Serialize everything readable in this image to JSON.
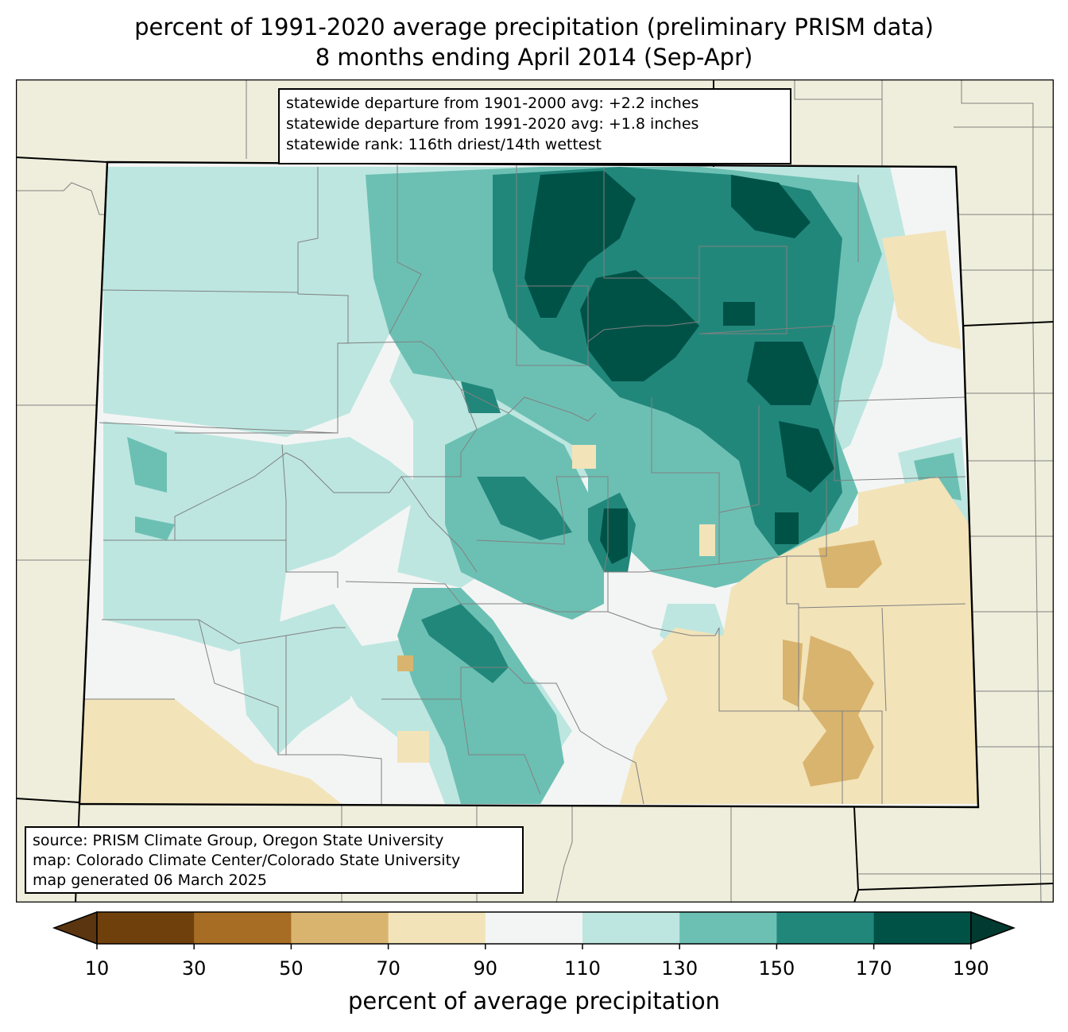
{
  "title": {
    "line1": "percent of 1991-2020 average precipitation (preliminary PRISM data)",
    "line2": "8 months ending April 2014 (Sep-Apr)"
  },
  "stats": {
    "line1": "statewide departure from 1901-2000 avg: +2.2 inches",
    "line2": "statewide departure from 1991-2020 avg: +1.8 inches",
    "line3": "statewide rank: 116th driest/14th wettest"
  },
  "source": {
    "line1": "source: PRISM Climate Group, Oregon State University",
    "line2": "map: Colorado Climate Center/Colorado State University",
    "line3": "map generated 06 March 2025"
  },
  "colorbar": {
    "title": "percent of average precipitation",
    "ticks": [
      "10",
      "30",
      "50",
      "70",
      "90",
      "110",
      "130",
      "150",
      "170",
      "190"
    ],
    "colors": [
      "#5a3510",
      "#70400c",
      "#a86d24",
      "#d9b46e",
      "#f2e3b9",
      "#f3f5f4",
      "#bde6e0",
      "#6cc0b3",
      "#22877b",
      "#005247",
      "#003a30"
    ]
  },
  "colors": {
    "background_land": "#efeedc",
    "state_border": "#000000",
    "county_border": "#808080"
  }
}
